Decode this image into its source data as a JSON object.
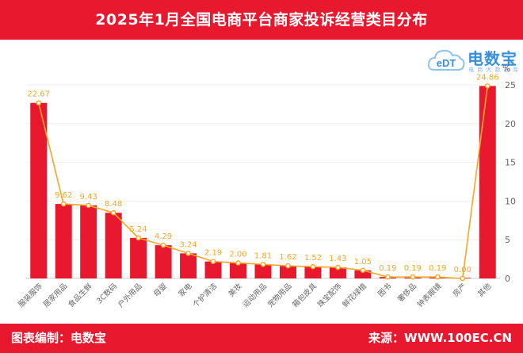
{
  "header": {
    "title": "2025年1月全国电商平台商家投诉经营类目分布"
  },
  "logo": {
    "mark": "eDT",
    "name": "电数宝",
    "slogan": "电 商 大 数 据 库"
  },
  "footer": {
    "left": "图表编制：电数宝",
    "right": "来源：WWW.100EC.CN"
  },
  "colors": {
    "brand_red": "#e8182f",
    "bar": "#e8182f",
    "line": "#f5a623",
    "label": "#f5a623",
    "axis_text": "#666666",
    "grid": "#eeeeee"
  },
  "chart_data": {
    "type": "bar",
    "categories": [
      "服装服饰",
      "居家用品",
      "食品生鲜",
      "3C数码",
      "户外用品",
      "母婴",
      "家电",
      "个护清洁",
      "美妆",
      "运动用品",
      "宠物用品",
      "箱包皮具",
      "珠宝配饰",
      "鲜花绿植",
      "图书",
      "奢侈品",
      "钟表眼镜",
      "房产",
      "其他"
    ],
    "series": [
      {
        "type": "bar",
        "values": [
          22.67,
          9.62,
          9.43,
          8.48,
          5.24,
          4.29,
          3.24,
          2.19,
          2.0,
          1.81,
          1.62,
          1.52,
          1.43,
          1.05,
          0.19,
          0.19,
          0.19,
          0.0,
          24.86
        ]
      },
      {
        "type": "line",
        "values": [
          22.67,
          9.62,
          9.43,
          8.48,
          5.24,
          4.29,
          3.24,
          2.19,
          2.0,
          1.81,
          1.62,
          1.52,
          1.43,
          1.05,
          0.19,
          0.19,
          0.19,
          0.0,
          24.86
        ]
      }
    ],
    "data_labels": [
      "22.67",
      "9.62",
      "9.43",
      "8.48",
      "5.24",
      "4.29",
      "3.24",
      "2.19",
      "2.00",
      "1.81",
      "1.62",
      "1.52",
      "1.43",
      "1.05",
      "0.19",
      "0.19",
      "0.19",
      "0.00",
      "24.86"
    ],
    "y_axis": {
      "min": 0,
      "max": 25,
      "ticks": [
        0,
        5,
        10,
        15,
        20,
        25
      ],
      "unit": "%",
      "position": "right"
    }
  }
}
